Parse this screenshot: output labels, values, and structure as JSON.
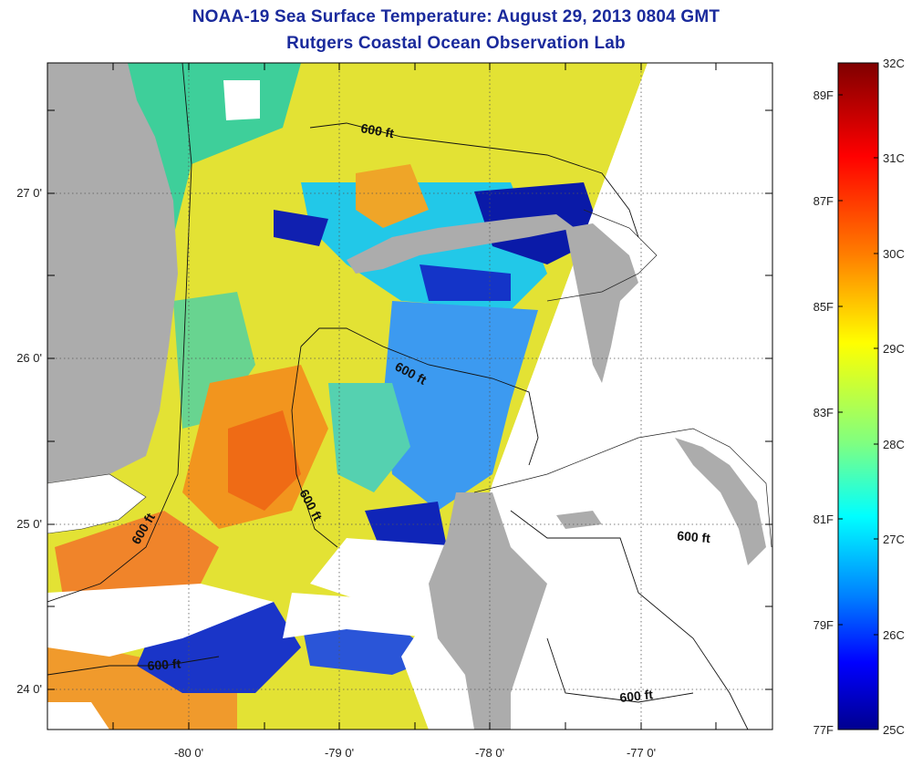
{
  "header": {
    "title": "NOAA-19 Sea Surface Temperature:  August 29, 2013 0804 GMT",
    "subtitle": "Rutgers Coastal Ocean Observation Lab"
  },
  "axes": {
    "lon_ticks": [
      "-80 0'",
      "-79 0'",
      "-78 0'",
      "-77 0'"
    ],
    "lat_ticks": [
      "27 0'",
      "26 0'",
      "25 0'",
      "24 0'"
    ]
  },
  "contour_labels": [
    "600 ft",
    "600 ft",
    "600 ft",
    "600 ft",
    "600 ft",
    "600 ft"
  ],
  "colorbar": {
    "celsius_labels": [
      "32C",
      "31C",
      "30C",
      "29C",
      "28C",
      "27C",
      "26C",
      "25C"
    ],
    "fahrenheit_labels": [
      "89F",
      "87F",
      "85F",
      "83F",
      "81F",
      "79F",
      "77F"
    ],
    "stops": [
      "#7f0000",
      "#ff0000",
      "#ff8000",
      "#ffff00",
      "#80ff80",
      "#00ffff",
      "#0080ff",
      "#0000ff",
      "#00008f"
    ]
  },
  "colors": {
    "land": "#acacac",
    "title": "#1a2a9c",
    "cloud": "#ffffff"
  }
}
